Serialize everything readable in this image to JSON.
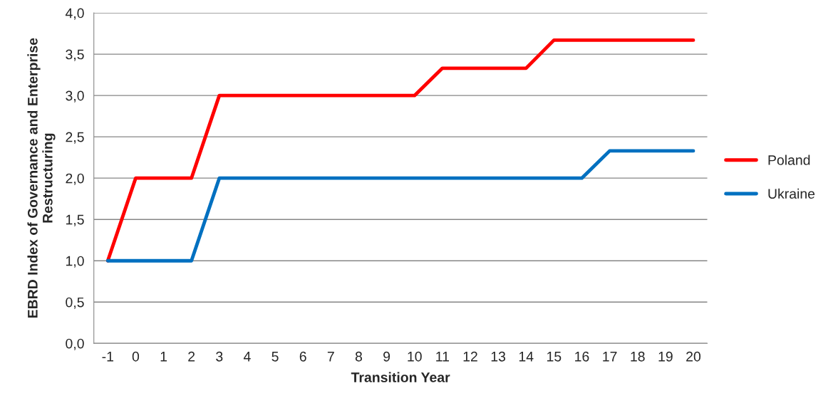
{
  "chart_data": {
    "type": "line",
    "xlabel": "Transition Year",
    "ylabel": "EBRD Index of Governance and Enterprise Restructuring",
    "categories": [
      "-1",
      "0",
      "1",
      "2",
      "3",
      "4",
      "5",
      "6",
      "7",
      "8",
      "9",
      "10",
      "11",
      "12",
      "13",
      "14",
      "15",
      "16",
      "17",
      "18",
      "19",
      "20"
    ],
    "series": [
      {
        "name": "Poland",
        "color": "#ff0000",
        "values": [
          1,
          2,
          2,
          2,
          3,
          3,
          3,
          3,
          3,
          3,
          3,
          3,
          3.33,
          3.33,
          3.33,
          3.33,
          3.67,
          3.67,
          3.67,
          3.67,
          3.67,
          3.67
        ]
      },
      {
        "name": "Ukraine",
        "color": "#0070c0",
        "values": [
          1,
          1,
          1,
          1,
          2,
          2,
          2,
          2,
          2,
          2,
          2,
          2,
          2,
          2,
          2,
          2,
          2,
          2,
          2.33,
          2.33,
          2.33,
          2.33
        ]
      }
    ],
    "ylim": [
      0,
      4
    ],
    "yticks": [
      {
        "value": 0,
        "label": "0,0"
      },
      {
        "value": 0.5,
        "label": "0,5"
      },
      {
        "value": 1,
        "label": "1,0"
      },
      {
        "value": 1.5,
        "label": "1,5"
      },
      {
        "value": 2,
        "label": "2,0"
      },
      {
        "value": 2.5,
        "label": "2,5"
      },
      {
        "value": 3,
        "label": "3,0"
      },
      {
        "value": 3.5,
        "label": "3,5"
      },
      {
        "value": 4,
        "label": "4,0"
      }
    ],
    "grid": "y",
    "legend": "right",
    "marker": "none",
    "line_style": "solid"
  }
}
